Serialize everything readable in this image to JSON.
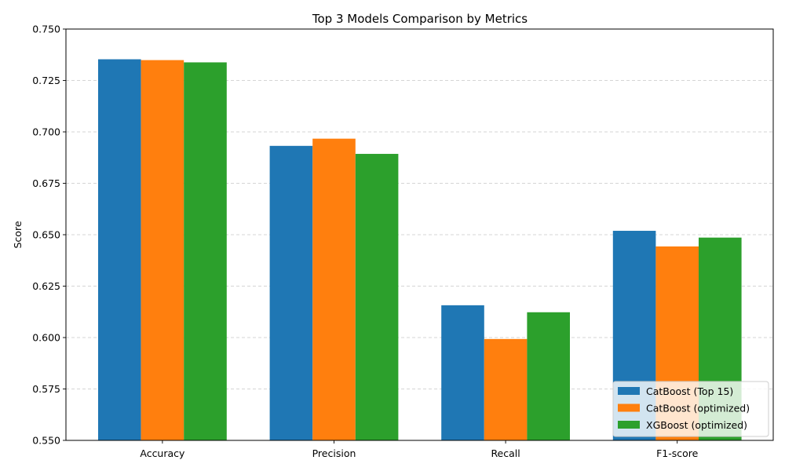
{
  "chart_data": {
    "type": "bar",
    "title": "Top 3 Models Comparison by Metrics",
    "xlabel": "",
    "ylabel": "Score",
    "categories": [
      "Accuracy",
      "Precision",
      "Recall",
      "F1-score"
    ],
    "series": [
      {
        "name": "CatBoost (Top 15)",
        "color": "#1f77b4",
        "values": [
          0.7353,
          0.6932,
          0.6157,
          0.6519
        ]
      },
      {
        "name": "CatBoost (optimized)",
        "color": "#ff7f0e",
        "values": [
          0.7349,
          0.6967,
          0.5993,
          0.6443
        ]
      },
      {
        "name": "XGBoost (optimized)",
        "color": "#2ca02c",
        "values": [
          0.7338,
          0.6893,
          0.6123,
          0.6486
        ]
      }
    ],
    "ylim": [
      0.55,
      0.75
    ],
    "yticks": [
      "0.550",
      "0.575",
      "0.600",
      "0.625",
      "0.650",
      "0.675",
      "0.700",
      "0.725",
      "0.750"
    ],
    "grid": "y-dashed",
    "legend_position": "lower-right"
  }
}
